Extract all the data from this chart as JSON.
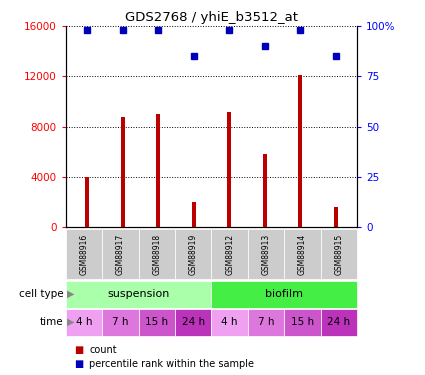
{
  "title": "GDS2768 / yhiE_b3512_at",
  "samples": [
    "GSM88916",
    "GSM88917",
    "GSM88918",
    "GSM88919",
    "GSM88912",
    "GSM88913",
    "GSM88914",
    "GSM88915"
  ],
  "counts": [
    4000,
    8800,
    9000,
    2000,
    9200,
    5800,
    12100,
    1600
  ],
  "percentile_ranks": [
    98,
    98,
    98,
    85,
    98,
    90,
    98,
    85
  ],
  "percentile_max": 100,
  "count_max": 16000,
  "count_ticks": [
    0,
    4000,
    8000,
    12000,
    16000
  ],
  "pct_ticks": [
    0,
    25,
    50,
    75,
    100
  ],
  "cell_types": [
    {
      "label": "suspension",
      "start": 0,
      "end": 4,
      "color": "#aaffaa"
    },
    {
      "label": "biofilm",
      "start": 4,
      "end": 8,
      "color": "#44ee44"
    }
  ],
  "time_labels": [
    "4 h",
    "7 h",
    "15 h",
    "24 h",
    "4 h",
    "7 h",
    "15 h",
    "24 h"
  ],
  "time_colors": [
    "#f0a0f0",
    "#dd77dd",
    "#cc55cc",
    "#bb33bb",
    "#f0a0f0",
    "#dd77dd",
    "#cc55cc",
    "#bb33bb"
  ],
  "bar_color": "#bb0000",
  "dot_color": "#0000bb",
  "sample_bg_color": "#cccccc",
  "legend_count_label": "count",
  "legend_pct_label": "percentile rank within the sample",
  "cell_type_label": "cell type",
  "time_label": "time",
  "bar_width": 0.12
}
